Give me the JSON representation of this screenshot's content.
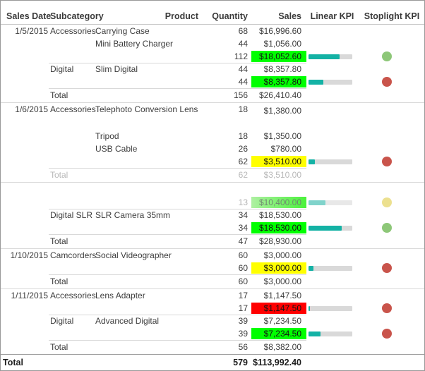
{
  "header": {
    "sales_date": "Sales Date",
    "subcategory": "Subcategory",
    "product": "Product",
    "quantity": "Quantity",
    "sales": "Sales",
    "linear_kpi": "Linear KPI",
    "stoplight_kpi": "Stoplight KPI"
  },
  "colors": {
    "cell_green": "#00ff00",
    "cell_yellow": "#ffff00",
    "cell_red": "#ff0000",
    "cell_green_faded_left": "#aef0a2",
    "cell_green_faded_right": "#4af23a",
    "teal": "#14b2a5",
    "teal_faded": "#80d3cb",
    "track": "#d9d9d9",
    "light_green": "#8dc778",
    "light_red": "#c9544b",
    "light_yellow_faded": "#ece08f"
  },
  "rows": [
    {
      "kind": "detail",
      "date": "1/5/2015",
      "subcategory": "Accessories",
      "product": "Carrying Case",
      "quantity": "68",
      "sales": "$16,996.60"
    },
    {
      "kind": "detail",
      "product": "Mini Battery Charger",
      "quantity": "44",
      "sales": "$1,056.00"
    },
    {
      "kind": "subtotal",
      "quantity": "112",
      "sales": "$18,052.60",
      "sales_bg": "green",
      "kpi": {
        "bar_pct": 71,
        "bar_color": "teal",
        "light": "light_green"
      }
    },
    {
      "kind": "detail",
      "subcategory": "Digital",
      "product": "Slim Digital",
      "quantity": "44",
      "sales": "$8,357.80"
    },
    {
      "kind": "subtotal",
      "quantity": "44",
      "sales": "$8,357.80",
      "sales_bg": "green",
      "kpi": {
        "bar_pct": 34,
        "bar_color": "teal",
        "light": "light_red"
      }
    },
    {
      "kind": "total",
      "label": "Total",
      "quantity": "156",
      "sales": "$26,410.40"
    },
    {
      "kind": "detail",
      "date": "1/6/2015",
      "subcategory": "Accessories",
      "product": "Telephoto Conversion Lens",
      "quantity": "18",
      "sales": "$1,380.00"
    },
    {
      "kind": "detail",
      "product": "Tripod",
      "quantity": "18",
      "sales": "$1,350.00"
    },
    {
      "kind": "detail",
      "product": "USB Cable",
      "quantity": "26",
      "sales": "$780.00"
    },
    {
      "kind": "subtotal",
      "quantity": "62",
      "sales": "$3,510.00",
      "sales_bg": "yellow",
      "kpi": {
        "bar_pct": 15,
        "bar_color": "teal",
        "light": "light_red"
      }
    },
    {
      "kind": "total",
      "label": "Total",
      "quantity": "62",
      "sales": "$3,510.00"
    },
    {
      "kind": "spacer"
    },
    {
      "kind": "subtotal",
      "quantity": "13",
      "sales": "$10,400.00",
      "sales_bg": "green_faded",
      "kpi": {
        "bar_pct": 38,
        "bar_color": "teal_faded",
        "light": "light_yellow_faded"
      }
    },
    {
      "kind": "detail",
      "subcategory": "Digital SLR",
      "product": "SLR Camera 35mm",
      "quantity": "34",
      "sales": "$18,530.00"
    },
    {
      "kind": "subtotal",
      "quantity": "34",
      "sales": "$18,530.00",
      "sales_bg": "green",
      "kpi": {
        "bar_pct": 75,
        "bar_color": "teal",
        "light": "light_green"
      }
    },
    {
      "kind": "total",
      "label": "Total",
      "quantity": "47",
      "sales": "$28,930.00"
    },
    {
      "kind": "detail",
      "date": "1/10/2015",
      "subcategory": "Camcorders",
      "product": "Social Videographer",
      "quantity": "60",
      "sales": "$3,000.00"
    },
    {
      "kind": "subtotal",
      "quantity": "60",
      "sales": "$3,000.00",
      "sales_bg": "yellow",
      "kpi": {
        "bar_pct": 12,
        "bar_color": "teal",
        "light": "light_red"
      }
    },
    {
      "kind": "total",
      "label": "Total",
      "quantity": "60",
      "sales": "$3,000.00"
    },
    {
      "kind": "detail",
      "date": "1/11/2015",
      "subcategory": "Accessories",
      "product": "Lens Adapter",
      "quantity": "17",
      "sales": "$1,147.50"
    },
    {
      "kind": "subtotal",
      "quantity": "17",
      "sales": "$1,147.50",
      "sales_bg": "red",
      "kpi": {
        "bar_pct": 4,
        "bar_color": "teal",
        "light": "light_red"
      }
    },
    {
      "kind": "detail",
      "subcategory": "Digital",
      "product": "Advanced Digital",
      "quantity": "39",
      "sales": "$7,234.50"
    },
    {
      "kind": "subtotal",
      "quantity": "39",
      "sales": "$7,234.50",
      "sales_bg": "green",
      "kpi": {
        "bar_pct": 27,
        "bar_color": "teal",
        "light": "light_red"
      }
    },
    {
      "kind": "total",
      "label": "Total",
      "quantity": "56",
      "sales": "$8,382.00"
    }
  ],
  "grand_total": {
    "label": "Total",
    "quantity": "579",
    "sales": "$113,992.40"
  }
}
